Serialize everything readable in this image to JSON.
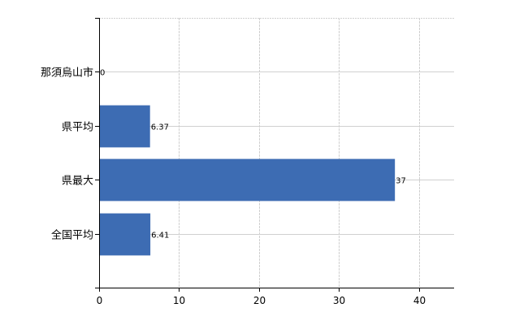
{
  "chart_data": {
    "type": "bar",
    "orientation": "horizontal",
    "categories": [
      "那須烏山市",
      "県平均",
      "県最大",
      "全国平均"
    ],
    "values": [
      0,
      6.37,
      37,
      6.41
    ],
    "data_labels": [
      "0",
      "6.37",
      "37",
      "6.41"
    ],
    "xlim": [
      0,
      44.4
    ],
    "xticks": [
      0,
      10,
      20,
      30,
      40
    ],
    "grid": true,
    "bar_color": "#3d6cb3",
    "grid_color": "#d0d0d0",
    "title": "",
    "xlabel": "",
    "ylabel": ""
  }
}
